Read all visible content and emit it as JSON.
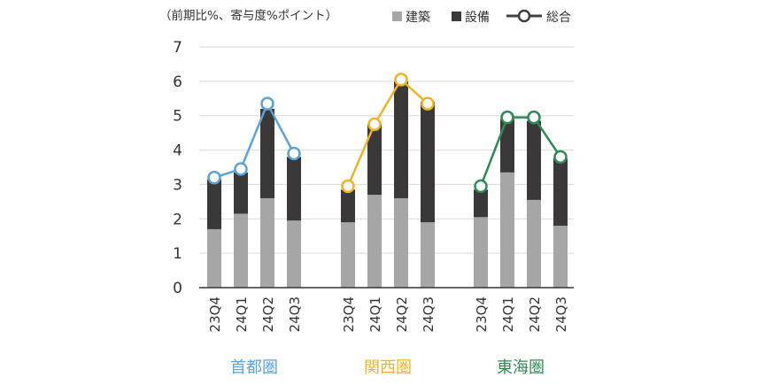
{
  "chart_data": {
    "type": "bar",
    "note": "（前期比%、寄与度%ポイント）",
    "legend": [
      {
        "label": "建築",
        "kind": "bar",
        "color": "#a6a6a6"
      },
      {
        "label": "設備",
        "kind": "bar",
        "color": "#3a3838"
      },
      {
        "label": "総合",
        "kind": "line-marker",
        "color": "#404040"
      }
    ],
    "ylim": [
      0,
      7
    ],
    "yticks": [
      "0",
      "1",
      "2",
      "3",
      "4",
      "5",
      "6",
      "7"
    ],
    "grid": true,
    "groups": [
      {
        "name": "首都圏",
        "color": "#5ba3d9",
        "categories": [
          "23Q4",
          "24Q1",
          "24Q2",
          "24Q3"
        ],
        "construction": [
          1.7,
          2.15,
          2.6,
          1.95
        ],
        "equipment": [
          1.45,
          1.2,
          2.6,
          1.85
        ],
        "total": [
          3.2,
          3.45,
          5.35,
          3.9
        ]
      },
      {
        "name": "関西圏",
        "color": "#f0b323",
        "categories": [
          "23Q4",
          "24Q1",
          "24Q2",
          "24Q3"
        ],
        "construction": [
          1.9,
          2.7,
          2.6,
          1.9
        ],
        "equipment": [
          0.95,
          2.05,
          3.4,
          3.5
        ],
        "total": [
          2.95,
          4.75,
          6.05,
          5.35
        ]
      },
      {
        "name": "東海圏",
        "color": "#2e8b57",
        "categories": [
          "23Q4",
          "24Q1",
          "24Q2",
          "24Q3"
        ],
        "construction": [
          2.05,
          3.35,
          2.55,
          1.8
        ],
        "equipment": [
          0.8,
          1.55,
          2.3,
          1.95
        ],
        "total": [
          2.95,
          4.95,
          4.95,
          3.8
        ]
      }
    ]
  }
}
